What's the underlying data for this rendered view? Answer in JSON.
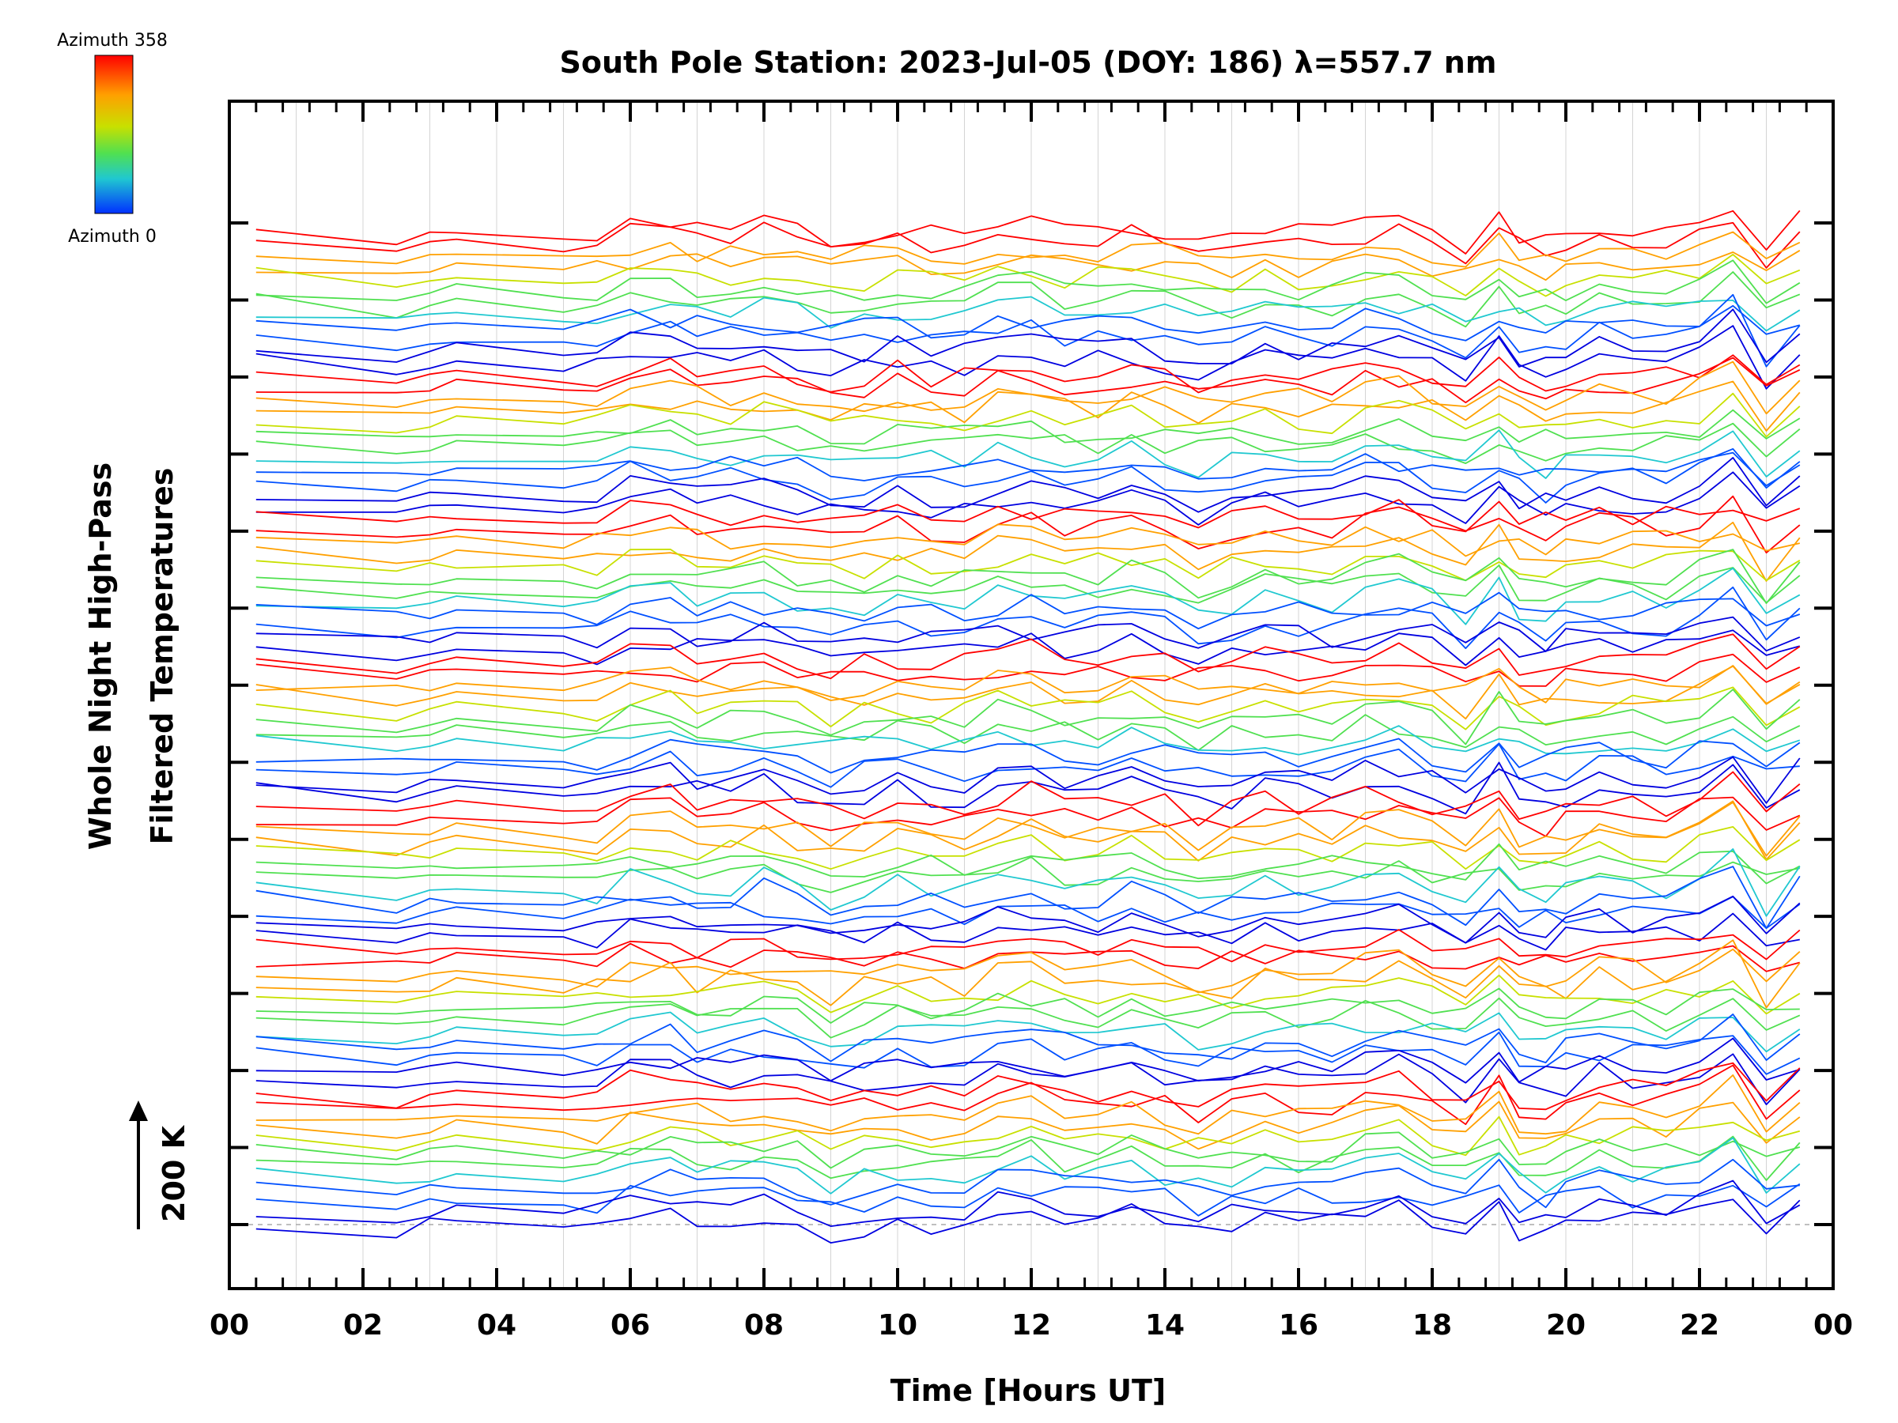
{
  "chart_data": {
    "type": "line",
    "title": "South Pole Station: 2023-Jul-05 (DOY: 186) λ=557.7 nm",
    "xlabel": "Time [Hours UT]",
    "ylabel_line1": "Whole Night High-Pass",
    "ylabel_line2": "Filtered Temperatures",
    "scale_label": "200 K",
    "xlim": [
      0,
      24
    ],
    "x_tick_labels": [
      "00",
      "02",
      "04",
      "06",
      "08",
      "10",
      "12",
      "14",
      "16",
      "18",
      "20",
      "22",
      "00"
    ],
    "y_offset_levels": 14,
    "legend": {
      "label_max": "Azimuth 358",
      "label_min": "Azimuth 0",
      "colors": [
        "#ff0000",
        "#ffa000",
        "#c8e000",
        "#50e050",
        "#20c8d0",
        "#0050ff",
        "#0000e0"
      ]
    },
    "series_description": "Each sequence of stacked lines represents temperature perturbations at one zenith angle ring, colored by azimuth (0-358 degrees); seven azimuth-sorted bands repeat down the plot.",
    "sample_times_hours": [
      0.4,
      2.5,
      3.0,
      3.4,
      5.0,
      5.5,
      6.0,
      6.6,
      7.0,
      7.5,
      8.0,
      8.5,
      9.0,
      9.5,
      10.0,
      10.5,
      11.0,
      11.5,
      12.0,
      12.5,
      13.0,
      13.5,
      14.0,
      14.5,
      15.0,
      15.5,
      16.0,
      16.5,
      17.0,
      17.5,
      18.0,
      18.5,
      19.0,
      19.3,
      19.7,
      20.0,
      20.5,
      21.0,
      21.5,
      22.0,
      22.5,
      23.0,
      23.5
    ]
  }
}
